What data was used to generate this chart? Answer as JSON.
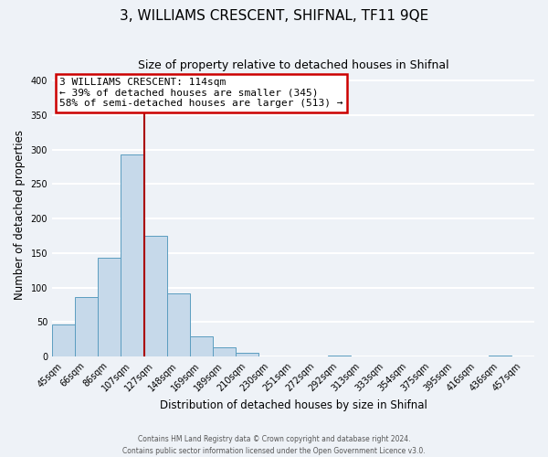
{
  "title": "3, WILLIAMS CRESCENT, SHIFNAL, TF11 9QE",
  "subtitle": "Size of property relative to detached houses in Shifnal",
  "xlabel": "Distribution of detached houses by size in Shifnal",
  "ylabel": "Number of detached properties",
  "bar_labels": [
    "45sqm",
    "66sqm",
    "86sqm",
    "107sqm",
    "127sqm",
    "148sqm",
    "169sqm",
    "189sqm",
    "210sqm",
    "230sqm",
    "251sqm",
    "272sqm",
    "292sqm",
    "313sqm",
    "333sqm",
    "354sqm",
    "375sqm",
    "395sqm",
    "416sqm",
    "436sqm",
    "457sqm"
  ],
  "bar_values": [
    47,
    86,
    143,
    293,
    175,
    91,
    30,
    14,
    5,
    0,
    0,
    0,
    2,
    0,
    0,
    0,
    0,
    0,
    0,
    2,
    0
  ],
  "bar_color": "#c6d9ea",
  "bar_edge_color": "#5b9dc0",
  "vline_index": 3.5,
  "vline_color": "#aa0000",
  "annotation_title": "3 WILLIAMS CRESCENT: 114sqm",
  "annotation_line1": "← 39% of detached houses are smaller (345)",
  "annotation_line2": "58% of semi-detached houses are larger (513) →",
  "annotation_box_color": "#ffffff",
  "annotation_box_edge": "#cc0000",
  "ylim": [
    0,
    410
  ],
  "yticks": [
    0,
    50,
    100,
    150,
    200,
    250,
    300,
    350,
    400
  ],
  "footer1": "Contains HM Land Registry data © Crown copyright and database right 2024.",
  "footer2": "Contains public sector information licensed under the Open Government Licence v3.0.",
  "bg_color": "#eef2f7",
  "grid_color": "#ffffff",
  "title_fontsize": 11,
  "subtitle_fontsize": 9
}
